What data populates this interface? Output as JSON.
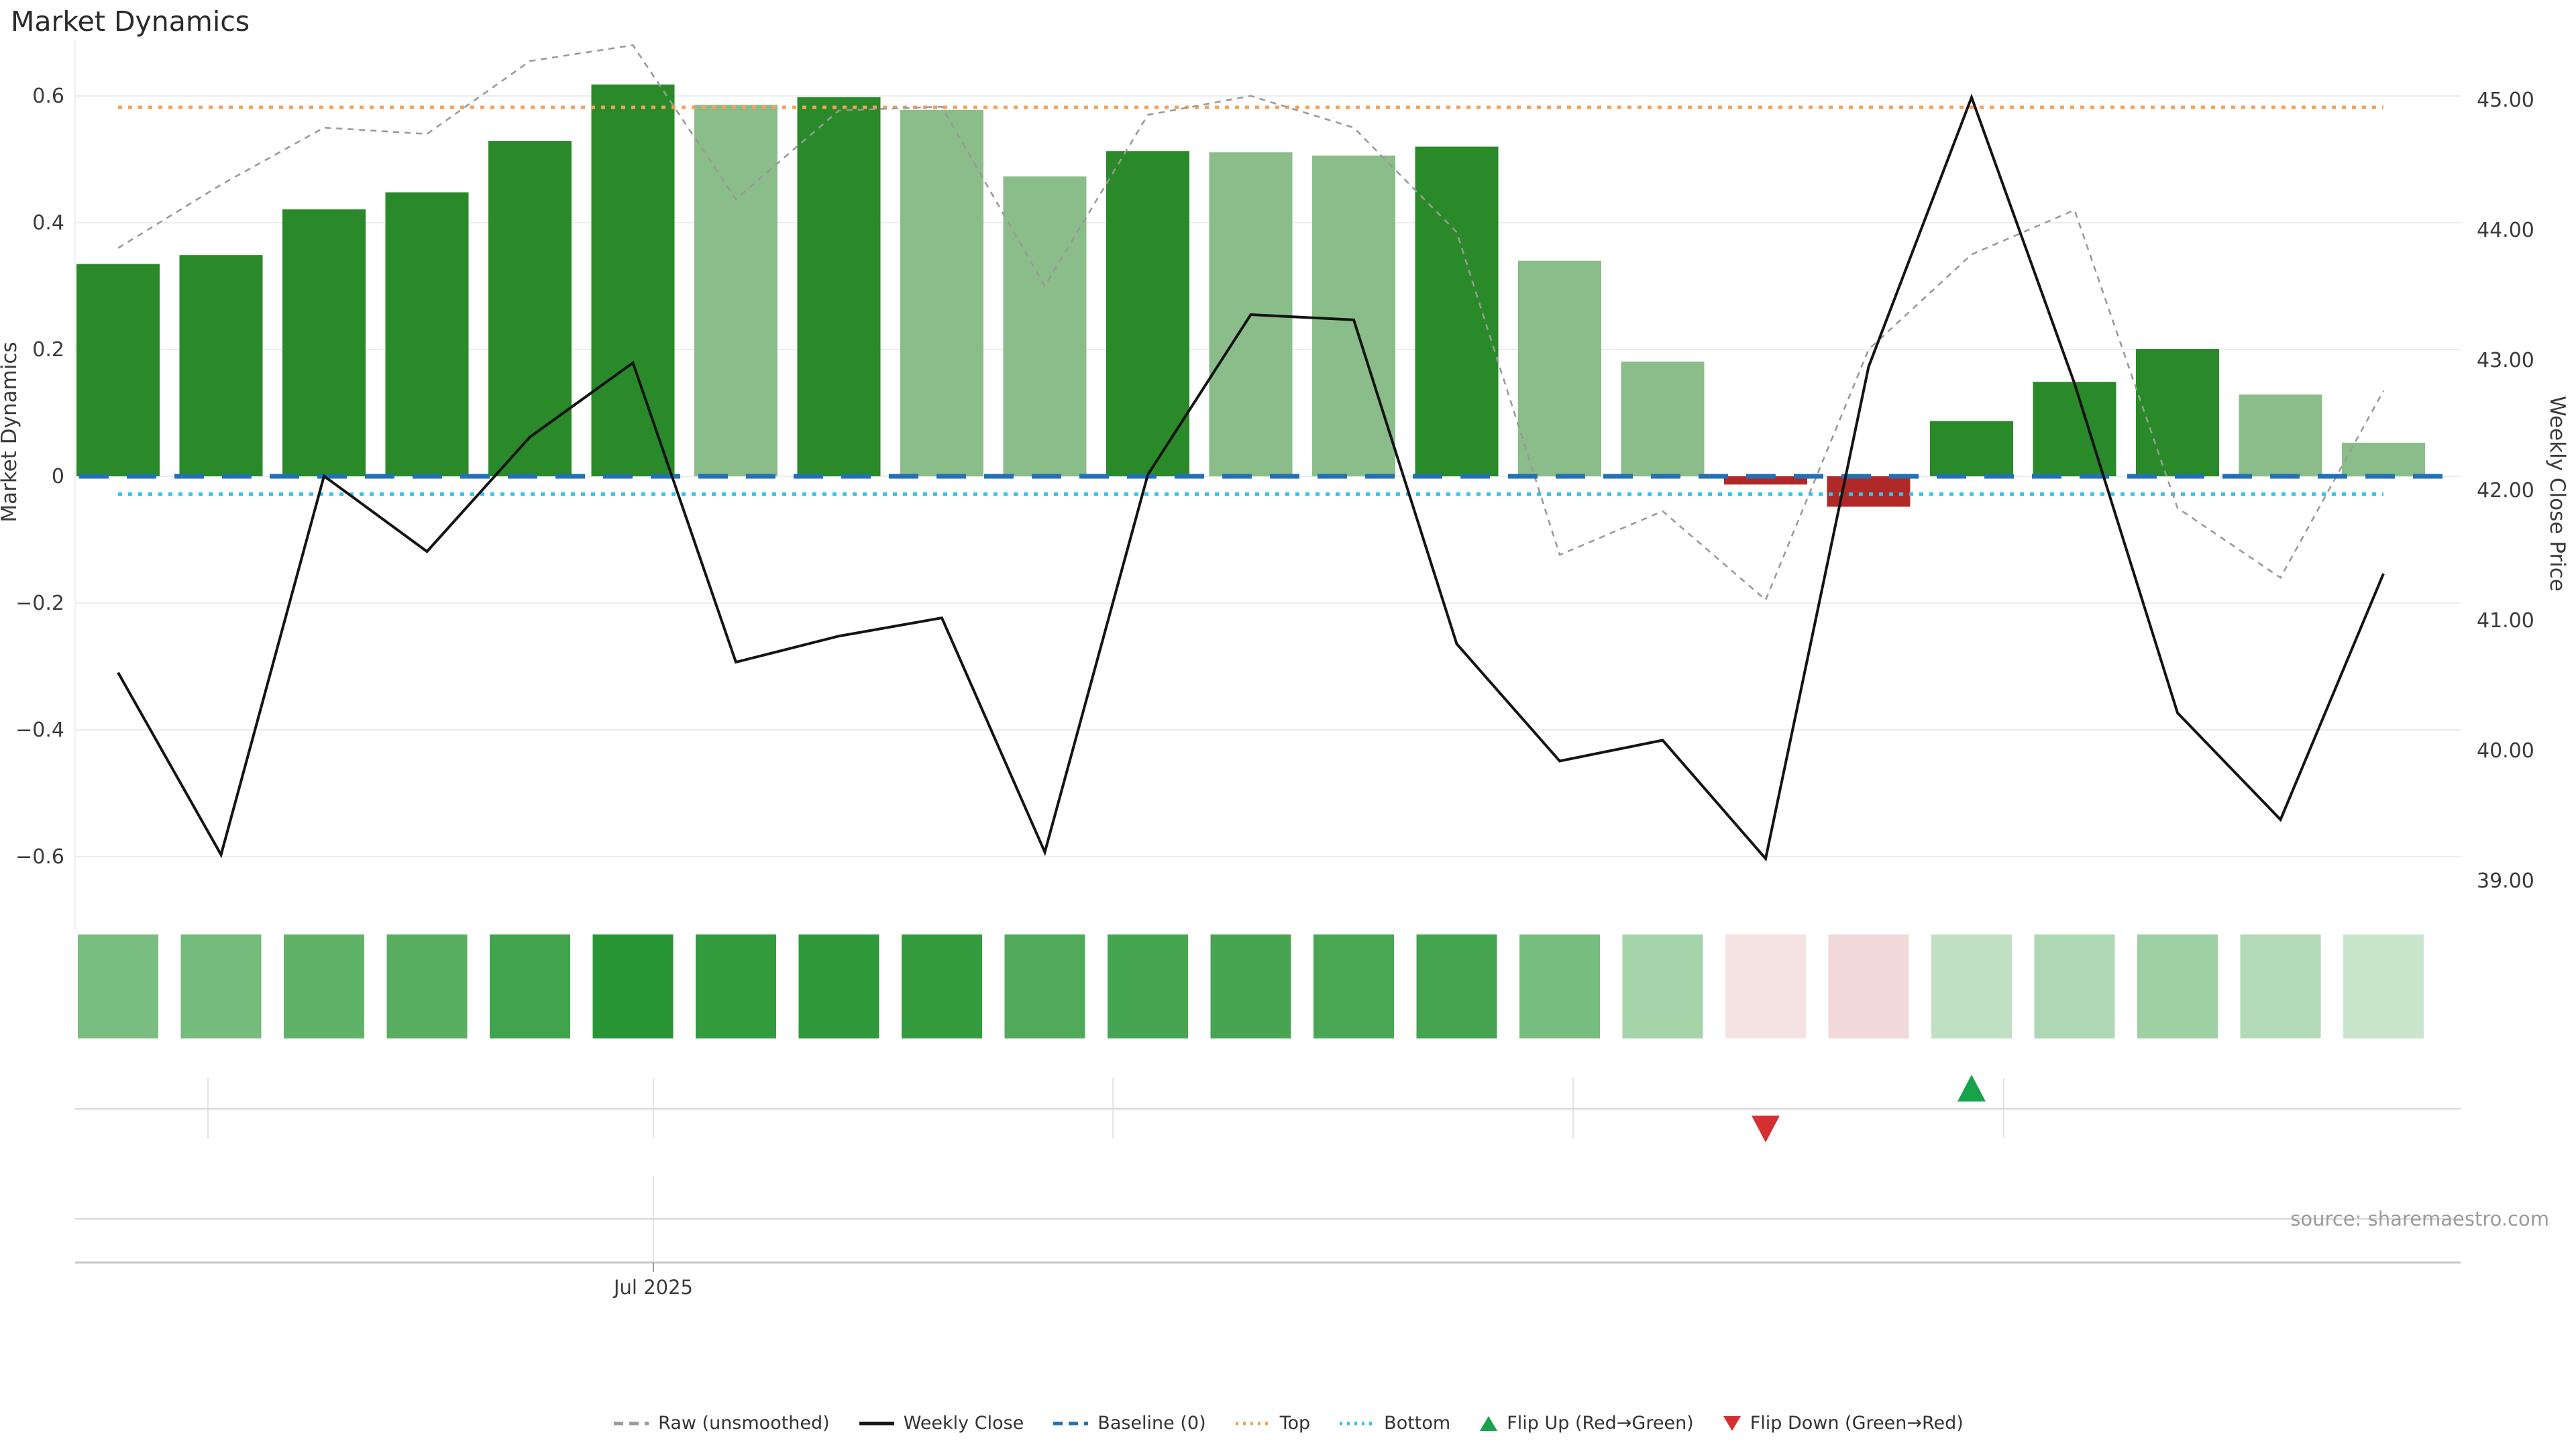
{
  "title": "Market Dynamics",
  "source_note": "source: sharemaestro.com",
  "x_axis": {
    "tick_label": "Jul 2025"
  },
  "left_axis": {
    "label": "Market Dynamics",
    "tick_labels": [
      "0.6",
      "0.4",
      "0.2",
      "0",
      "−0.2",
      "−0.4",
      "−0.6"
    ],
    "tick_values": [
      0.6,
      0.4,
      0.2,
      0,
      -0.2,
      -0.4,
      -0.6
    ]
  },
  "right_axis": {
    "label": "Weekly Close Price",
    "tick_labels": [
      "45.00",
      "44.00",
      "43.00",
      "42.00",
      "41.00",
      "40.00",
      "39.00"
    ],
    "tick_values": [
      45,
      44,
      43,
      42,
      41,
      40,
      39
    ]
  },
  "legend": {
    "items": [
      {
        "label": "Raw (unsmoothed)",
        "glyph": "dashed-line",
        "color": "#9a9a9a"
      },
      {
        "label": "Weekly Close",
        "glyph": "solid-line",
        "color": "#141414"
      },
      {
        "label": "Baseline (0)",
        "glyph": "dashed-line",
        "color": "#2271b3"
      },
      {
        "label": "Top",
        "glyph": "dotted-line",
        "color": "#f2a25c"
      },
      {
        "label": "Bottom",
        "glyph": "dotted-line",
        "color": "#35c3e8"
      },
      {
        "label": "Flip Up (Red→Green)",
        "glyph": "triangle-up",
        "color": "#18a24b"
      },
      {
        "label": "Flip Down (Green→Red)",
        "glyph": "triangle-down",
        "color": "#d62f2f"
      }
    ]
  },
  "chart_data": {
    "type": "bar",
    "subtype": "bar+line combo with heat strip and flip-event markers",
    "weeks": 23,
    "title": "Market Dynamics",
    "xlabel": "",
    "ylabel_left": "Market Dynamics",
    "ylabel_right": "Weekly Close Price",
    "axis_ranges": {
      "left": [
        -0.73,
        0.688
      ],
      "right": [
        38.55,
        45.42
      ]
    },
    "series": [
      {
        "name": "Market Dynamics",
        "type": "bar",
        "axis": "left",
        "values": [
          0.335,
          0.349,
          0.421,
          0.448,
          0.529,
          0.618,
          0.586,
          0.598,
          0.578,
          0.473,
          0.513,
          0.511,
          0.506,
          0.52,
          0.34,
          0.181,
          -0.013,
          -0.048,
          0.087,
          0.149,
          0.201,
          0.129,
          0.053
        ],
        "bar_styles": [
          "dark",
          "dark",
          "dark",
          "dark",
          "dark",
          "dark",
          "light",
          "dark",
          "light",
          "light",
          "dark",
          "light",
          "light",
          "dark",
          "light",
          "light",
          "red",
          "red",
          "dark",
          "dark",
          "dark",
          "light",
          "light"
        ]
      },
      {
        "name": "Raw (unsmoothed)",
        "type": "line",
        "axis": "left",
        "values": [
          0.36,
          0.46,
          0.55,
          0.54,
          0.655,
          0.68,
          0.437,
          0.577,
          0.583,
          0.3,
          0.57,
          0.6,
          0.55,
          0.385,
          -0.124,
          -0.055,
          -0.195,
          0.2,
          0.35,
          0.42,
          -0.05,
          -0.16,
          0.135
        ]
      },
      {
        "name": "Weekly Close",
        "type": "line",
        "axis": "right",
        "values": [
          40.6,
          39.2,
          42.11,
          41.53,
          42.41,
          42.98,
          40.68,
          40.88,
          41.02,
          39.22,
          42.12,
          43.35,
          43.31,
          40.82,
          39.92,
          40.08,
          39.17,
          42.95,
          45.02,
          42.82,
          40.29,
          39.47,
          41.36
        ]
      }
    ],
    "reference_lines": [
      {
        "name": "Baseline (0)",
        "axis": "left",
        "value": 0,
        "style": "dashed",
        "color": "#2271b3"
      },
      {
        "name": "Top",
        "axis": "left",
        "value": 0.582,
        "style": "dotted",
        "color": "#f2a25c"
      },
      {
        "name": "Bottom",
        "axis": "left",
        "value": -0.028,
        "style": "dotted",
        "color": "#35c3e8"
      }
    ],
    "flip_markers": [
      {
        "type": "down",
        "week_index": 17,
        "meaning": "Flip Down (Green→Red)"
      },
      {
        "type": "up",
        "week_index": 19,
        "meaning": "Flip Up (Red→Green)"
      }
    ],
    "heat_strip": {
      "source": "bar values",
      "positive_color": "#289634",
      "negative_color": "#be4646"
    },
    "month_boundaries_frac": [
      0.0557,
      0.2424,
      0.4351,
      0.628,
      0.8085
    ],
    "jul_tick_frac": 0.2424,
    "grid": "horizontal, left-axis ticks only",
    "legend_position": "bottom-center"
  },
  "colors": {
    "bar_dark": "#2a8928",
    "bar_light": "#8bbd8a",
    "bar_red": "#b12828",
    "raw_line": "#9a9a9a",
    "weekly_line": "#141414",
    "baseline": "#2271b3",
    "top_line": "#f2a25c",
    "bottom_line": "#35c3e8",
    "grid": "#eaecf0",
    "marker_up": "#18a24b",
    "marker_down": "#d62f2f",
    "row_line": "#d8d8d8",
    "axis_line": "#c8c8c8"
  }
}
